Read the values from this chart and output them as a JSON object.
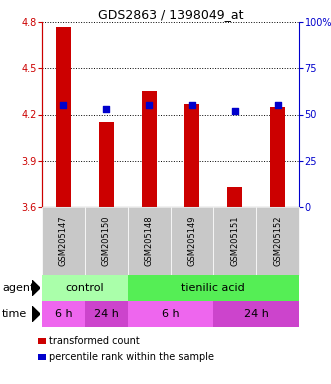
{
  "title": "GDS2863 / 1398049_at",
  "samples": [
    "GSM205147",
    "GSM205150",
    "GSM205148",
    "GSM205149",
    "GSM205151",
    "GSM205152"
  ],
  "bar_values": [
    4.77,
    4.15,
    4.35,
    4.27,
    3.73,
    4.25
  ],
  "bar_bottom": 3.6,
  "percentile_values": [
    55,
    53,
    55,
    55,
    52,
    55
  ],
  "ylim_left": [
    3.6,
    4.8
  ],
  "ylim_right": [
    0,
    100
  ],
  "yticks_left": [
    3.6,
    3.9,
    4.2,
    4.5,
    4.8
  ],
  "yticks_right": [
    0,
    25,
    50,
    75,
    100
  ],
  "ytick_labels_right": [
    "0",
    "25",
    "50",
    "75",
    "100%"
  ],
  "bar_color": "#cc0000",
  "percentile_color": "#0000cc",
  "agent_row": {
    "label": "agent",
    "groups": [
      {
        "text": "control",
        "span": [
          0,
          2
        ],
        "color": "#aaffaa"
      },
      {
        "text": "tienilic acid",
        "span": [
          2,
          6
        ],
        "color": "#55ee55"
      }
    ]
  },
  "time_row": {
    "label": "time",
    "groups": [
      {
        "text": "6 h",
        "span": [
          0,
          1
        ],
        "color": "#ee66ee"
      },
      {
        "text": "24 h",
        "span": [
          1,
          2
        ],
        "color": "#cc44cc"
      },
      {
        "text": "6 h",
        "span": [
          2,
          4
        ],
        "color": "#ee66ee"
      },
      {
        "text": "24 h",
        "span": [
          4,
          6
        ],
        "color": "#cc44cc"
      }
    ]
  },
  "sample_bg_color": "#c8c8c8",
  "legend": [
    {
      "color": "#cc0000",
      "label": "transformed count"
    },
    {
      "color": "#0000cc",
      "label": "percentile rank within the sample"
    }
  ]
}
